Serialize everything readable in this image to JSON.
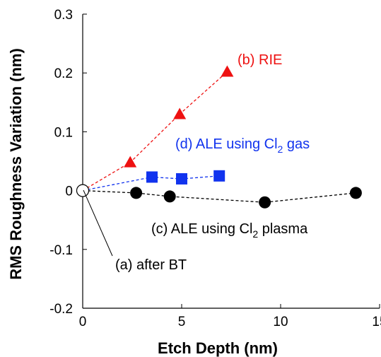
{
  "chart_data": {
    "type": "scatter",
    "xlabel": "Etch Depth (nm)",
    "ylabel": "RMS Roughness Variation (nm)",
    "xlim": [
      0,
      15
    ],
    "ylim": [
      -0.2,
      0.3
    ],
    "xticks": [
      0,
      5,
      10,
      15
    ],
    "yticks": [
      -0.2,
      -0.1,
      0,
      0.1,
      0.2,
      0.3
    ],
    "grid": false,
    "series": [
      {
        "name": "(b) RIE",
        "color": "#ee1111",
        "marker": "triangle",
        "line_style": "dashed",
        "points": [
          {
            "x": 0,
            "y": 0
          },
          {
            "x": 2.4,
            "y": 0.048
          },
          {
            "x": 4.9,
            "y": 0.13
          },
          {
            "x": 7.3,
            "y": 0.202
          }
        ]
      },
      {
        "name": "(d) ALE using Cl2 gas",
        "color": "#1133ee",
        "marker": "square",
        "line_style": "dashed",
        "points": [
          {
            "x": 0,
            "y": 0
          },
          {
            "x": 3.5,
            "y": 0.023
          },
          {
            "x": 5.0,
            "y": 0.02
          },
          {
            "x": 6.9,
            "y": 0.025
          }
        ]
      },
      {
        "name": "(c) ALE using Cl2 plasma",
        "color": "#000000",
        "marker": "circle",
        "line_style": "dashed",
        "points": [
          {
            "x": 0,
            "y": 0
          },
          {
            "x": 2.7,
            "y": -0.004
          },
          {
            "x": 4.4,
            "y": -0.01
          },
          {
            "x": 9.2,
            "y": -0.02
          },
          {
            "x": 13.8,
            "y": -0.004
          }
        ]
      }
    ],
    "reference_point": {
      "name": "(a) after BT",
      "x": 0,
      "y": 0
    }
  },
  "annotations": {
    "rie": "(b) RIE",
    "gas_pre": "(d) ALE using Cl",
    "gas_sub": "2",
    "gas_post": " gas",
    "plasma_pre": "(c) ALE using Cl",
    "plasma_sub": "2",
    "plasma_post": " plasma",
    "bt": "(a) after BT"
  }
}
